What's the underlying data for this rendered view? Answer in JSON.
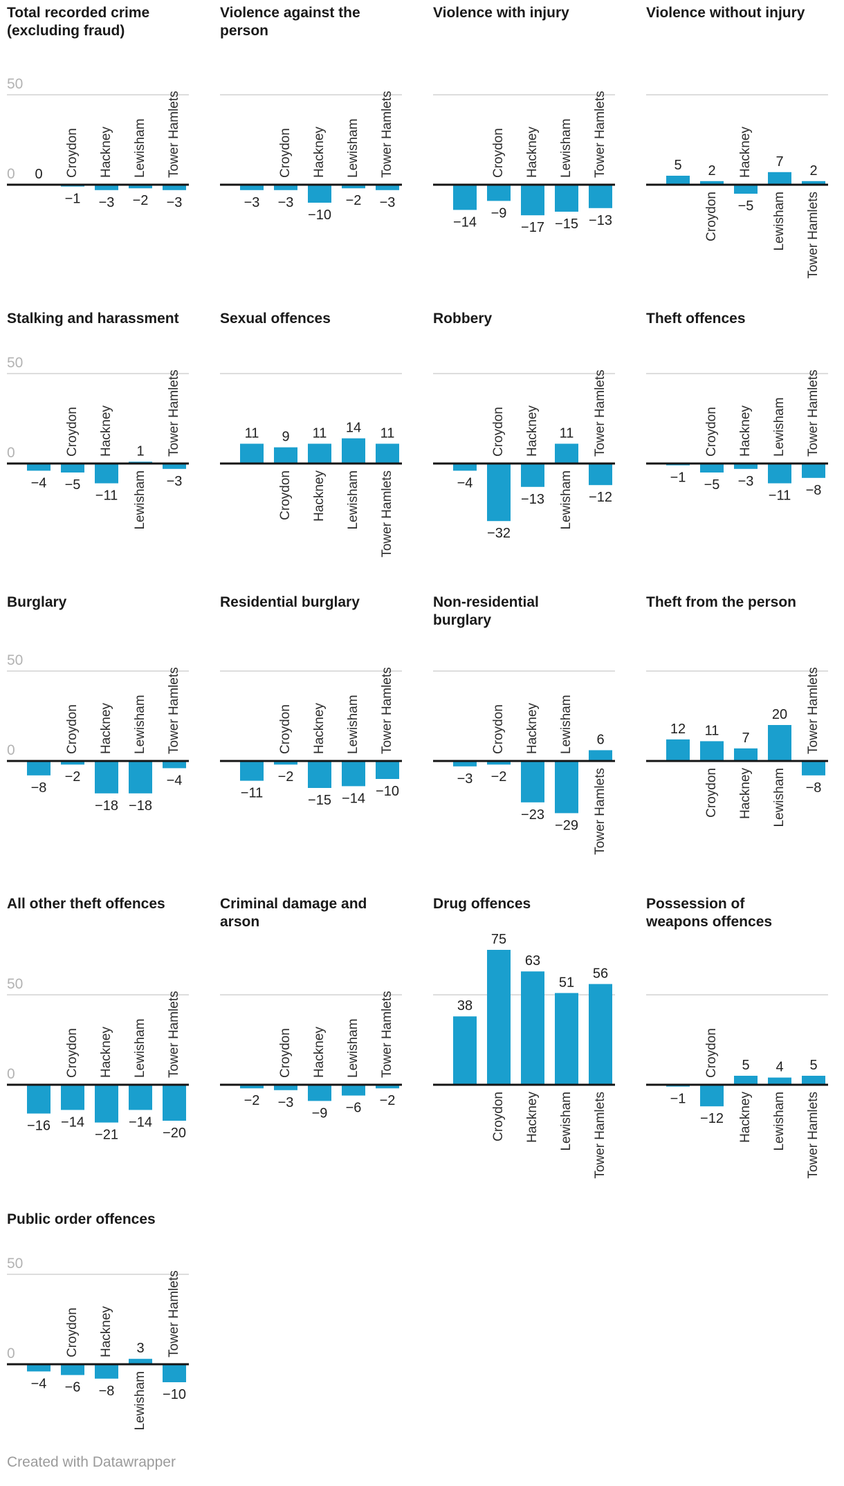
{
  "footer": {
    "text": "Created with Datawrapper"
  },
  "chart_layout": {
    "grid": "4 columns x 5 rows, last row has 1 chart",
    "y_axis": {
      "ticks": [
        {
          "value": 0,
          "label": "0"
        },
        {
          "value": 50,
          "label": "50"
        }
      ],
      "tick_labels_shown": "leftmost column charts only",
      "gridline_at": 50,
      "baseline_at": 0
    },
    "category_label_rotation": -90,
    "label_rules": "positive bars: value above bar, category below axis; negative bars: value below bar, category above axis; first bar has no category label",
    "colors": {
      "bar": "#1a9fce",
      "axis_line": "#151515",
      "gridline": "#dddddd",
      "tick_label": "#b3b3b3",
      "value_label": "#1f1f1f",
      "category_label": "#2e2e2e",
      "title": "#1a1a1a",
      "footer": "#9b9b9b",
      "background": "#ffffff"
    }
  },
  "chart_data": [
    {
      "type": "bar",
      "title": "Total recorded crime\n(excluding fraud)",
      "categories": [
        "",
        "Croydon",
        "Hackney",
        "Lewisham",
        "Tower Hamlets"
      ],
      "values": [
        0,
        -1,
        -3,
        -2,
        -3
      ],
      "ylim": [
        -35,
        55
      ],
      "y_ticks": [
        0,
        50
      ]
    },
    {
      "type": "bar",
      "title": "Violence against the\nperson",
      "categories": [
        "",
        "Croydon",
        "Hackney",
        "Lewisham",
        "Tower Hamlets"
      ],
      "values": [
        -3,
        -3,
        -10,
        -2,
        -3
      ],
      "ylim": [
        -35,
        55
      ],
      "y_ticks": [
        0,
        50
      ]
    },
    {
      "type": "bar",
      "title": "Violence with injury",
      "categories": [
        "",
        "Croydon",
        "Hackney",
        "Lewisham",
        "Tower Hamlets"
      ],
      "values": [
        -14,
        -9,
        -17,
        -15,
        -13
      ],
      "ylim": [
        -35,
        55
      ],
      "y_ticks": [
        0,
        50
      ]
    },
    {
      "type": "bar",
      "title": "Violence without injury",
      "categories": [
        "",
        "Croydon",
        "Hackney",
        "Lewisham",
        "Tower Hamlets"
      ],
      "values": [
        5,
        2,
        -5,
        7,
        2
      ],
      "ylim": [
        -35,
        55
      ],
      "y_ticks": [
        0,
        50
      ]
    },
    {
      "type": "bar",
      "title": "Stalking and harassment",
      "categories": [
        "",
        "Croydon",
        "Hackney",
        "Lewisham",
        "Tower Hamlets"
      ],
      "values": [
        -4,
        -5,
        -11,
        1,
        -3
      ],
      "ylim": [
        -35,
        55
      ],
      "y_ticks": [
        0,
        50
      ]
    },
    {
      "type": "bar",
      "title": "Sexual offences",
      "categories": [
        "",
        "Croydon",
        "Hackney",
        "Lewisham",
        "Tower Hamlets"
      ],
      "values": [
        11,
        9,
        11,
        14,
        11
      ],
      "ylim": [
        -35,
        55
      ],
      "y_ticks": [
        0,
        50
      ]
    },
    {
      "type": "bar",
      "title": "Robbery",
      "categories": [
        "",
        "Croydon",
        "Hackney",
        "Lewisham",
        "Tower Hamlets"
      ],
      "values": [
        -4,
        -32,
        -13,
        11,
        -12
      ],
      "ylim": [
        -35,
        55
      ],
      "y_ticks": [
        0,
        50
      ]
    },
    {
      "type": "bar",
      "title": "Theft offences",
      "categories": [
        "",
        "Croydon",
        "Hackney",
        "Lewisham",
        "Tower Hamlets"
      ],
      "values": [
        -1,
        -5,
        -3,
        -11,
        -8
      ],
      "ylim": [
        -35,
        55
      ],
      "y_ticks": [
        0,
        50
      ]
    },
    {
      "type": "bar",
      "title": "Burglary",
      "categories": [
        "",
        "Croydon",
        "Hackney",
        "Lewisham",
        "Tower Hamlets"
      ],
      "values": [
        -8,
        -2,
        -18,
        -18,
        -4
      ],
      "ylim": [
        -35,
        55
      ],
      "y_ticks": [
        0,
        50
      ]
    },
    {
      "type": "bar",
      "title": "Residential burglary",
      "categories": [
        "",
        "Croydon",
        "Hackney",
        "Lewisham",
        "Tower Hamlets"
      ],
      "values": [
        -11,
        -2,
        -15,
        -14,
        -10
      ],
      "ylim": [
        -35,
        55
      ],
      "y_ticks": [
        0,
        50
      ]
    },
    {
      "type": "bar",
      "title": "Non-residential\nburglary",
      "categories": [
        "",
        "Croydon",
        "Hackney",
        "Lewisham",
        "Tower Hamlets"
      ],
      "values": [
        -3,
        -2,
        -23,
        -29,
        6
      ],
      "ylim": [
        -35,
        55
      ],
      "y_ticks": [
        0,
        50
      ]
    },
    {
      "type": "bar",
      "title": "Theft from the person",
      "categories": [
        "",
        "Croydon",
        "Hackney",
        "Lewisham",
        "Tower Hamlets"
      ],
      "values": [
        12,
        11,
        7,
        20,
        -8
      ],
      "ylim": [
        -35,
        55
      ],
      "y_ticks": [
        0,
        50
      ]
    },
    {
      "type": "bar",
      "title": "All other theft offences",
      "categories": [
        "",
        "Croydon",
        "Hackney",
        "Lewisham",
        "Tower Hamlets"
      ],
      "values": [
        -16,
        -14,
        -21,
        -14,
        -20
      ],
      "ylim": [
        -35,
        55
      ],
      "y_ticks": [
        0,
        50
      ]
    },
    {
      "type": "bar",
      "title": "Criminal damage and\narson",
      "categories": [
        "",
        "Croydon",
        "Hackney",
        "Lewisham",
        "Tower Hamlets"
      ],
      "values": [
        -2,
        -3,
        -9,
        -6,
        -2
      ],
      "ylim": [
        -35,
        55
      ],
      "y_ticks": [
        0,
        50
      ]
    },
    {
      "type": "bar",
      "title": "Drug offences",
      "categories": [
        "",
        "Croydon",
        "Hackney",
        "Lewisham",
        "Tower Hamlets"
      ],
      "values": [
        38,
        75,
        63,
        51,
        56
      ],
      "ylim": [
        -35,
        85
      ],
      "y_ticks": [
        0,
        50
      ]
    },
    {
      "type": "bar",
      "title": "Possession of\nweapons offences",
      "categories": [
        "",
        "Croydon",
        "Hackney",
        "Lewisham",
        "Tower Hamlets"
      ],
      "values": [
        -1,
        -12,
        5,
        4,
        5
      ],
      "ylim": [
        -35,
        55
      ],
      "y_ticks": [
        0,
        50
      ]
    },
    {
      "type": "bar",
      "title": "Public order offences",
      "categories": [
        "",
        "Croydon",
        "Hackney",
        "Lewisham",
        "Tower Hamlets"
      ],
      "values": [
        -4,
        -6,
        -8,
        3,
        -10
      ],
      "ylim": [
        -35,
        55
      ],
      "y_ticks": [
        0,
        50
      ]
    }
  ]
}
